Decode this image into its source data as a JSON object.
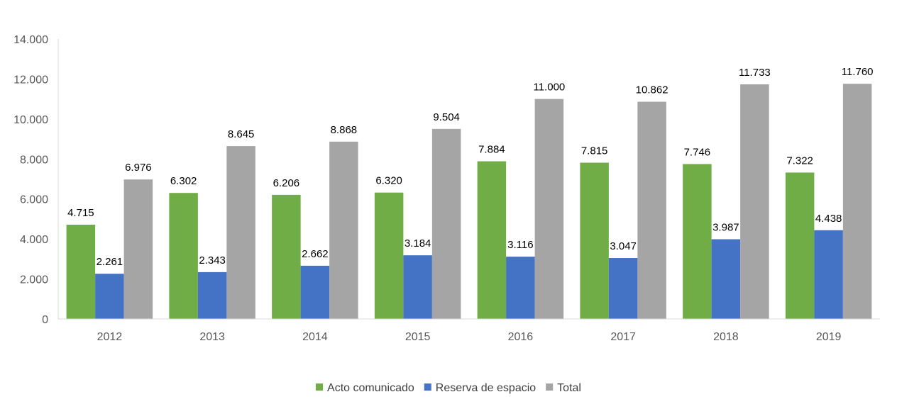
{
  "chart_data": {
    "type": "bar",
    "categories": [
      "2012",
      "2013",
      "2014",
      "2015",
      "2016",
      "2017",
      "2018",
      "2019"
    ],
    "series": [
      {
        "name": "Acto comunicado",
        "color": "#70AD47",
        "values": [
          4715,
          6302,
          6206,
          6320,
          7884,
          7815,
          7746,
          7322
        ],
        "labels": [
          "4.715",
          "6.302",
          "6.206",
          "6.320",
          "7.884",
          "7.815",
          "7.746",
          "7.322"
        ]
      },
      {
        "name": "Reserva de espacio",
        "color": "#4472C4",
        "values": [
          2261,
          2343,
          2662,
          3184,
          3116,
          3047,
          3987,
          4438
        ],
        "labels": [
          "2.261",
          "2.343",
          "2.662",
          "3.184",
          "3.116",
          "3.047",
          "3.987",
          "4.438"
        ]
      },
      {
        "name": "Total",
        "color": "#A5A5A5",
        "values": [
          6976,
          8645,
          8868,
          9504,
          11000,
          10862,
          11733,
          11760
        ],
        "labels": [
          "6.976",
          "8.645",
          "8.868",
          "9.504",
          "11.000",
          "10.862",
          "11.733",
          "11.760"
        ]
      }
    ],
    "ylim": [
      0,
      14000
    ],
    "yticks": [
      0,
      2000,
      4000,
      6000,
      8000,
      10000,
      12000,
      14000
    ],
    "ytick_labels": [
      "0",
      "2.000",
      "4.000",
      "6.000",
      "8.000",
      "10.000",
      "12.000",
      "14.000"
    ],
    "grid": false,
    "legend_position": "bottom"
  }
}
